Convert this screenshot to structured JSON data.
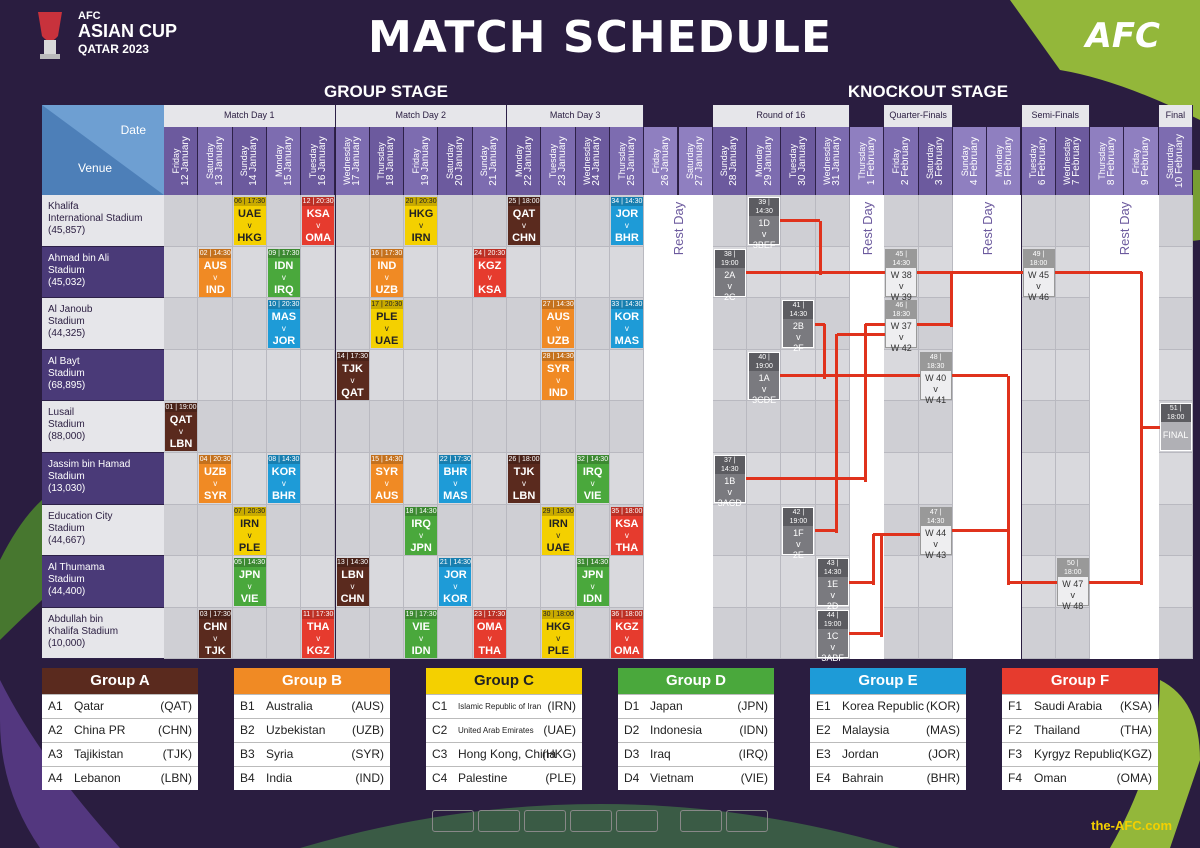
{
  "header": {
    "title": "MATCH SCHEDULE",
    "logo_line1": "AFC",
    "logo_line2": "ASIAN CUP",
    "logo_line3": "QATAR 2023",
    "afc_logo": "AFC",
    "group_stage": "GROUP STAGE",
    "knockout_stage": "KNOCKOUT STAGE"
  },
  "grid": {
    "corner_date": "Date",
    "corner_venue": "Venue",
    "rounds": [
      "Match Day 1",
      "Match Day 2",
      "Match Day 3",
      "Round of 16",
      "Quarter-Finals",
      "Semi-Finals",
      "Final"
    ],
    "days": [
      [
        "Friday",
        "12 January"
      ],
      [
        "Saturday",
        "13 January"
      ],
      [
        "Sunday",
        "14 January"
      ],
      [
        "Monday",
        "15 January"
      ],
      [
        "Tuesday",
        "16 January"
      ],
      [
        "Wednesday",
        "17 January"
      ],
      [
        "Thursday",
        "18 January"
      ],
      [
        "Friday",
        "19 January"
      ],
      [
        "Saturday",
        "20 January"
      ],
      [
        "Sunday",
        "21 January"
      ],
      [
        "Monday",
        "22 January"
      ],
      [
        "Tuesday",
        "23 January"
      ],
      [
        "Wednesday",
        "24 January"
      ],
      [
        "Thursday",
        "25 January"
      ],
      [
        "Friday",
        "26 January"
      ],
      [
        "Saturday",
        "27 January"
      ],
      [
        "Sunday",
        "28 January"
      ],
      [
        "Monday",
        "29 January"
      ],
      [
        "Tuesday",
        "30 January"
      ],
      [
        "Wednesday",
        "31 January"
      ],
      [
        "Thursday",
        "1 February"
      ],
      [
        "Friday",
        "2 February"
      ],
      [
        "Saturday",
        "3 February"
      ],
      [
        "Sunday",
        "4 February"
      ],
      [
        "Monday",
        "5 February"
      ],
      [
        "Tuesday",
        "6 February"
      ],
      [
        "Wednesday",
        "7 February"
      ],
      [
        "Thursday",
        "8 February"
      ],
      [
        "Friday",
        "9 February"
      ],
      [
        "Saturday",
        "10 February"
      ]
    ],
    "venues": [
      [
        "Khalifa",
        "International Stadium",
        "(45,857)"
      ],
      [
        "Ahmad bin Ali",
        "Stadium",
        "(45,032)"
      ],
      [
        "Al Janoub",
        "Stadium",
        "(44,325)"
      ],
      [
        "Al Bayt",
        "Stadium",
        "(68,895)"
      ],
      [
        "Lusail",
        "Stadium",
        "(88,000)"
      ],
      [
        "Jassim bin Hamad",
        "Stadium",
        "(13,030)"
      ],
      [
        "Education City",
        "Stadium",
        "(44,667)"
      ],
      [
        "Al Thumama",
        "Stadium",
        "(44,400)"
      ],
      [
        "Abdullah bin",
        "Khalifa Stadium",
        "(10,000)"
      ]
    ],
    "rest_day": "Rest Day",
    "v": "v"
  },
  "matches": [
    {
      "n": "06",
      "t": "17:30",
      "h": "UAE",
      "a": "HKG",
      "r": 0,
      "d": 2,
      "c": "#f4d000"
    },
    {
      "n": "12",
      "t": "20:30",
      "h": "KSA",
      "a": "OMA",
      "r": 0,
      "d": 4,
      "c": "#e63b2e"
    },
    {
      "n": "20",
      "t": "20:30",
      "h": "HKG",
      "a": "IRN",
      "r": 0,
      "d": 7,
      "c": "#f4d000"
    },
    {
      "n": "25",
      "t": "18:00",
      "h": "QAT",
      "a": "CHN",
      "r": 0,
      "d": 10,
      "c": "#5a2a1e"
    },
    {
      "n": "34",
      "t": "14:30",
      "h": "JOR",
      "a": "BHR",
      "r": 0,
      "d": 13,
      "c": "#1e9bd7"
    },
    {
      "n": "02",
      "t": "14:30",
      "h": "AUS",
      "a": "IND",
      "r": 1,
      "d": 1,
      "c": "#f08a24"
    },
    {
      "n": "09",
      "t": "17:30",
      "h": "IDN",
      "a": "IRQ",
      "r": 1,
      "d": 3,
      "c": "#4aa83c"
    },
    {
      "n": "16",
      "t": "17:30",
      "h": "IND",
      "a": "UZB",
      "r": 1,
      "d": 6,
      "c": "#f08a24"
    },
    {
      "n": "24",
      "t": "20:30",
      "h": "KGZ",
      "a": "KSA",
      "r": 1,
      "d": 9,
      "c": "#e63b2e"
    },
    {
      "n": "10",
      "t": "20:30",
      "h": "MAS",
      "a": "JOR",
      "r": 2,
      "d": 3,
      "c": "#1e9bd7"
    },
    {
      "n": "17",
      "t": "20:30",
      "h": "PLE",
      "a": "UAE",
      "r": 2,
      "d": 6,
      "c": "#f4d000"
    },
    {
      "n": "27",
      "t": "14:30",
      "h": "AUS",
      "a": "UZB",
      "r": 2,
      "d": 11,
      "c": "#f08a24"
    },
    {
      "n": "33",
      "t": "14:30",
      "h": "KOR",
      "a": "MAS",
      "r": 2,
      "d": 13,
      "c": "#1e9bd7"
    },
    {
      "n": "14",
      "t": "17:30",
      "h": "TJK",
      "a": "QAT",
      "r": 3,
      "d": 5,
      "c": "#5a2a1e"
    },
    {
      "n": "28",
      "t": "14:30",
      "h": "SYR",
      "a": "IND",
      "r": 3,
      "d": 11,
      "c": "#f08a24"
    },
    {
      "n": "01",
      "t": "19:00",
      "h": "QAT",
      "a": "LBN",
      "r": 4,
      "d": 0,
      "c": "#5a2a1e"
    },
    {
      "n": "04",
      "t": "20:30",
      "h": "UZB",
      "a": "SYR",
      "r": 5,
      "d": 1,
      "c": "#f08a24"
    },
    {
      "n": "08",
      "t": "14:30",
      "h": "KOR",
      "a": "BHR",
      "r": 5,
      "d": 3,
      "c": "#1e9bd7"
    },
    {
      "n": "15",
      "t": "14:30",
      "h": "SYR",
      "a": "AUS",
      "r": 5,
      "d": 6,
      "c": "#f08a24"
    },
    {
      "n": "22",
      "t": "17:30",
      "h": "BHR",
      "a": "MAS",
      "r": 5,
      "d": 8,
      "c": "#1e9bd7"
    },
    {
      "n": "26",
      "t": "18:00",
      "h": "TJK",
      "a": "LBN",
      "r": 5,
      "d": 10,
      "c": "#5a2a1e"
    },
    {
      "n": "32",
      "t": "14:30",
      "h": "IRQ",
      "a": "VIE",
      "r": 5,
      "d": 12,
      "c": "#4aa83c"
    },
    {
      "n": "07",
      "t": "20:30",
      "h": "IRN",
      "a": "PLE",
      "r": 6,
      "d": 2,
      "c": "#f4d000"
    },
    {
      "n": "18",
      "t": "14:30",
      "h": "IRQ",
      "a": "JPN",
      "r": 6,
      "d": 7,
      "c": "#4aa83c"
    },
    {
      "n": "29",
      "t": "18:00",
      "h": "IRN",
      "a": "UAE",
      "r": 6,
      "d": 11,
      "c": "#f4d000"
    },
    {
      "n": "35",
      "t": "18:00",
      "h": "KSA",
      "a": "THA",
      "r": 6,
      "d": 13,
      "c": "#e63b2e"
    },
    {
      "n": "05",
      "t": "14:30",
      "h": "JPN",
      "a": "VIE",
      "r": 7,
      "d": 2,
      "c": "#4aa83c"
    },
    {
      "n": "13",
      "t": "14:30",
      "h": "LBN",
      "a": "CHN",
      "r": 7,
      "d": 5,
      "c": "#5a2a1e"
    },
    {
      "n": "21",
      "t": "14:30",
      "h": "JOR",
      "a": "KOR",
      "r": 7,
      "d": 8,
      "c": "#1e9bd7"
    },
    {
      "n": "31",
      "t": "14:30",
      "h": "JPN",
      "a": "IDN",
      "r": 7,
      "d": 12,
      "c": "#4aa83c"
    },
    {
      "n": "03",
      "t": "17:30",
      "h": "CHN",
      "a": "TJK",
      "r": 8,
      "d": 1,
      "c": "#5a2a1e"
    },
    {
      "n": "11",
      "t": "17:30",
      "h": "THA",
      "a": "KGZ",
      "r": 8,
      "d": 4,
      "c": "#e63b2e"
    },
    {
      "n": "19",
      "t": "17:30",
      "h": "VIE",
      "a": "IDN",
      "r": 8,
      "d": 7,
      "c": "#4aa83c"
    },
    {
      "n": "23",
      "t": "17:30",
      "h": "OMA",
      "a": "THA",
      "r": 8,
      "d": 9,
      "c": "#e63b2e"
    },
    {
      "n": "30",
      "t": "18:00",
      "h": "HKG",
      "a": "PLE",
      "r": 8,
      "d": 11,
      "c": "#f4d000"
    },
    {
      "n": "36",
      "t": "18:00",
      "h": "KGZ",
      "a": "OMA",
      "r": 8,
      "d": 13,
      "c": "#e63b2e"
    }
  ],
  "knockout": [
    {
      "n": "39",
      "t": "14:30",
      "h": "1D",
      "a": "3BEF",
      "r": 0,
      "d": 17,
      "lt": false
    },
    {
      "n": "38",
      "t": "19:00",
      "h": "2A",
      "a": "2C",
      "r": 1,
      "d": 16,
      "lt": false
    },
    {
      "n": "41",
      "t": "14:30",
      "h": "2B",
      "a": "2F",
      "r": 2,
      "d": 18,
      "lt": false
    },
    {
      "n": "40",
      "t": "19:00",
      "h": "1A",
      "a": "3CDE",
      "r": 3,
      "d": 17,
      "lt": false
    },
    {
      "n": "37",
      "t": "14:30",
      "h": "1B",
      "a": "3ACD",
      "r": 5,
      "d": 16,
      "lt": false
    },
    {
      "n": "42",
      "t": "19:00",
      "h": "1F",
      "a": "2E",
      "r": 6,
      "d": 18,
      "lt": false
    },
    {
      "n": "43",
      "t": "14:30",
      "h": "1E",
      "a": "2D",
      "r": 7,
      "d": 19,
      "lt": false
    },
    {
      "n": "44",
      "t": "19:00",
      "h": "1C",
      "a": "3ABF",
      "r": 8,
      "d": 19,
      "lt": false
    },
    {
      "n": "45",
      "t": "14:30",
      "h": "W 38",
      "a": "W 39",
      "r": 1,
      "d": 21,
      "lt": true
    },
    {
      "n": "46",
      "t": "18:30",
      "h": "W 37",
      "a": "W 42",
      "r": 2,
      "d": 21,
      "lt": true
    },
    {
      "n": "48",
      "t": "18:30",
      "h": "W 40",
      "a": "W 41",
      "r": 3,
      "d": 22,
      "lt": true
    },
    {
      "n": "47",
      "t": "14:30",
      "h": "W 44",
      "a": "W 43",
      "r": 6,
      "d": 22,
      "lt": true
    },
    {
      "n": "49",
      "t": "18:00",
      "h": "W 45",
      "a": "W 46",
      "r": 1,
      "d": 25,
      "lt": true
    },
    {
      "n": "50",
      "t": "18:00",
      "h": "W 47",
      "a": "W 48",
      "r": 7,
      "d": 26,
      "lt": true
    },
    {
      "n": "51",
      "t": "18:00",
      "h": "FINAL",
      "a": "",
      "r": 4,
      "d": 29,
      "lt": false,
      "final": true
    }
  ],
  "groups": [
    {
      "name": "Group A",
      "color": "#5a2a1e",
      "teams": [
        [
          "A1",
          "Qatar",
          "(QAT)"
        ],
        [
          "A2",
          "China PR",
          "(CHN)"
        ],
        [
          "A3",
          "Tajikistan",
          "(TJK)"
        ],
        [
          "A4",
          "Lebanon",
          "(LBN)"
        ]
      ]
    },
    {
      "name": "Group B",
      "color": "#f08a24",
      "teams": [
        [
          "B1",
          "Australia",
          "(AUS)"
        ],
        [
          "B2",
          "Uzbekistan",
          "(UZB)"
        ],
        [
          "B3",
          "Syria",
          "(SYR)"
        ],
        [
          "B4",
          "India",
          "(IND)"
        ]
      ]
    },
    {
      "name": "Group C",
      "color": "#f4d000",
      "teams": [
        [
          "C1",
          "Islamic Republic of Iran",
          "(IRN)"
        ],
        [
          "C2",
          "United Arab Emirates",
          "(UAE)"
        ],
        [
          "C3",
          "Hong Kong, China",
          "(HKG)"
        ],
        [
          "C4",
          "Palestine",
          "(PLE)"
        ]
      ]
    },
    {
      "name": "Group D",
      "color": "#4aa83c",
      "teams": [
        [
          "D1",
          "Japan",
          "(JPN)"
        ],
        [
          "D2",
          "Indonesia",
          "(IDN)"
        ],
        [
          "D3",
          "Iraq",
          "(IRQ)"
        ],
        [
          "D4",
          "Vietnam",
          "(VIE)"
        ]
      ]
    },
    {
      "name": "Group E",
      "color": "#1e9bd7",
      "teams": [
        [
          "E1",
          "Korea Republic",
          "(KOR)"
        ],
        [
          "E2",
          "Malaysia",
          "(MAS)"
        ],
        [
          "E3",
          "Jordan",
          "(JOR)"
        ],
        [
          "E4",
          "Bahrain",
          "(BHR)"
        ]
      ]
    },
    {
      "name": "Group F",
      "color": "#e63b2e",
      "teams": [
        [
          "F1",
          "Saudi Arabia",
          "(KSA)"
        ],
        [
          "F2",
          "Thailand",
          "(THA)"
        ],
        [
          "F3",
          "Kyrgyz Republic",
          "(KGZ)"
        ],
        [
          "F4",
          "Oman",
          "(OMA)"
        ]
      ]
    }
  ],
  "footer": {
    "site": "the-AFC.com"
  }
}
